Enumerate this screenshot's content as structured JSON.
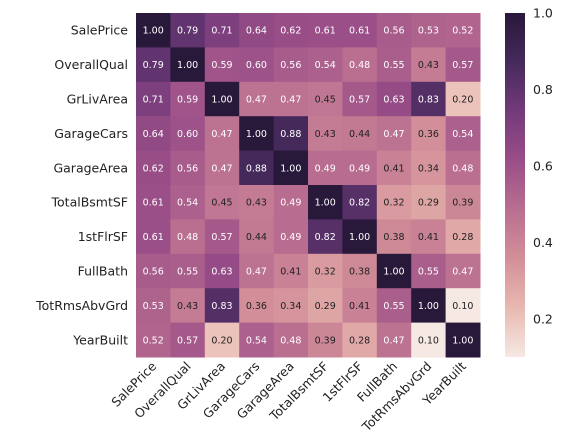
{
  "chart_data": {
    "type": "heatmap",
    "title": "",
    "xlabel": "",
    "ylabel": "",
    "categories": [
      "SalePrice",
      "OverallQual",
      "GrLivArea",
      "GarageCars",
      "GarageArea",
      "TotalBsmtSF",
      "1stFlrSF",
      "FullBath",
      "TotRmsAbvGrd",
      "YearBuilt"
    ],
    "values": [
      [
        1.0,
        0.79,
        0.71,
        0.64,
        0.62,
        0.61,
        0.61,
        0.56,
        0.53,
        0.52
      ],
      [
        0.79,
        1.0,
        0.59,
        0.6,
        0.56,
        0.54,
        0.48,
        0.55,
        0.43,
        0.57
      ],
      [
        0.71,
        0.59,
        1.0,
        0.47,
        0.47,
        0.45,
        0.57,
        0.63,
        0.83,
        0.2
      ],
      [
        0.64,
        0.6,
        0.47,
        1.0,
        0.88,
        0.43,
        0.44,
        0.47,
        0.36,
        0.54
      ],
      [
        0.62,
        0.56,
        0.47,
        0.88,
        1.0,
        0.49,
        0.49,
        0.41,
        0.34,
        0.48
      ],
      [
        0.61,
        0.54,
        0.45,
        0.43,
        0.49,
        1.0,
        0.82,
        0.32,
        0.29,
        0.39
      ],
      [
        0.61,
        0.48,
        0.57,
        0.44,
        0.49,
        0.82,
        1.0,
        0.38,
        0.41,
        0.28
      ],
      [
        0.56,
        0.55,
        0.63,
        0.47,
        0.41,
        0.32,
        0.38,
        1.0,
        0.55,
        0.47
      ],
      [
        0.53,
        0.43,
        0.83,
        0.36,
        0.34,
        0.29,
        0.41,
        0.55,
        1.0,
        0.1
      ],
      [
        0.52,
        0.57,
        0.2,
        0.54,
        0.48,
        0.39,
        0.28,
        0.47,
        0.1,
        1.0
      ]
    ],
    "value_format": "0.00",
    "colorbar": {
      "ticks": [
        "0.2",
        "0.4",
        "0.6",
        "0.8",
        "1.0"
      ],
      "range": [
        0.1,
        1.0
      ],
      "colors": [
        "#f6e8e3",
        "#e8b9b0",
        "#d38f99",
        "#b96e90",
        "#9a4e88",
        "#733a7a",
        "#462a5c",
        "#28183a"
      ]
    }
  }
}
